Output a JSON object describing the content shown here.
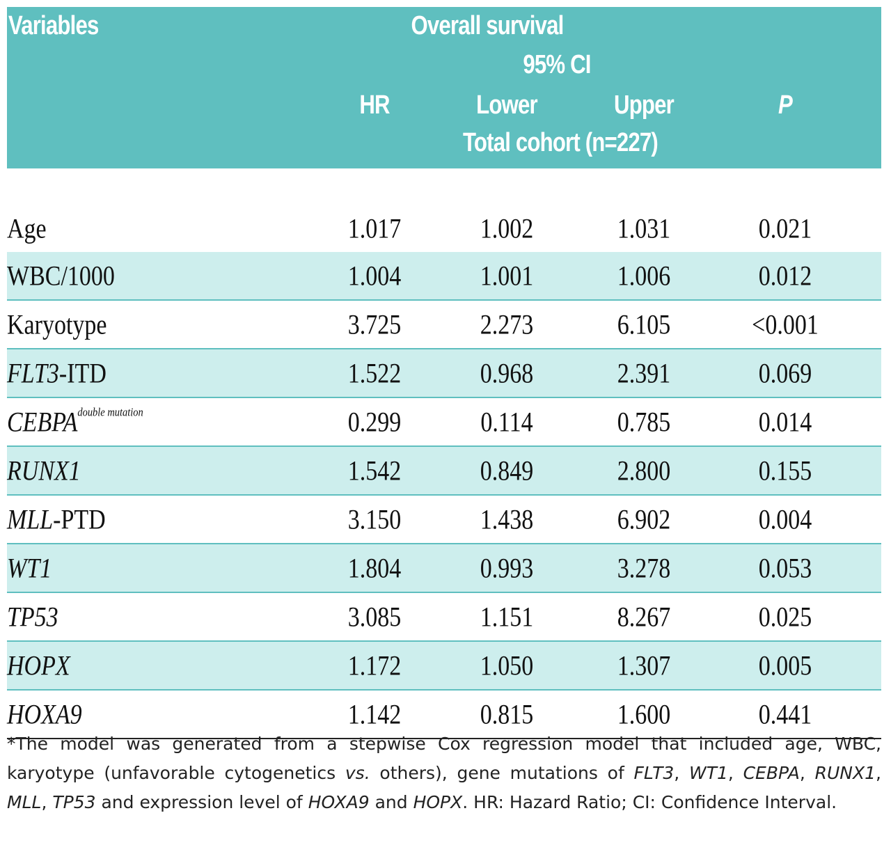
{
  "header": {
    "variables": "Variables",
    "overall_survival": "Overall survival",
    "ci": "95% CI",
    "hr": "HR",
    "lower": "Lower",
    "upper": "Upper",
    "p": "P",
    "cohort": "Total cohort (n=227)"
  },
  "rows": [
    {
      "var_main": "Age",
      "var_rest": "",
      "hr": "1.017",
      "lower": "1.002",
      "upper": "1.031",
      "p": "0.021"
    },
    {
      "var_main": "WBC/1000",
      "var_rest": "",
      "hr": "1.004",
      "lower": "1.001",
      "upper": "1.006",
      "p": "0.012"
    },
    {
      "var_main": "Karyotype",
      "var_rest": "",
      "hr": "3.725",
      "lower": "2.273",
      "upper": "6.105",
      "p": "<0.001"
    },
    {
      "var_main": "FLT3",
      "var_rest": "-ITD",
      "hr": "1.522",
      "lower": "0.968",
      "upper": "2.391",
      "p": "0.069"
    },
    {
      "var_main": "CEBPA",
      "var_sup": "double mutation",
      "hr": "0.299",
      "lower": "0.114",
      "upper": "0.785",
      "p": "0.014"
    },
    {
      "var_main": "RUNX1",
      "var_rest": "",
      "hr": "1.542",
      "lower": "0.849",
      "upper": "2.800",
      "p": "0.155"
    },
    {
      "var_main": "MLL",
      "var_rest": "-PTD",
      "hr": "3.150",
      "lower": "1.438",
      "upper": "6.902",
      "p": "0.004"
    },
    {
      "var_main": "WT1",
      "var_rest": "",
      "hr": "1.804",
      "lower": "0.993",
      "upper": "3.278",
      "p": "0.053"
    },
    {
      "var_main": "TP53",
      "var_rest": "",
      "hr": "3.085",
      "lower": "1.151",
      "upper": "8.267",
      "p": "0.025"
    },
    {
      "var_main": "HOPX",
      "var_rest": "",
      "hr": "1.172",
      "lower": "1.050",
      "upper": "1.307",
      "p": "0.005"
    },
    {
      "var_main": "HOXA9",
      "var_rest": "",
      "hr": "1.142",
      "lower": "0.815",
      "upper": "1.600",
      "p": "0.441"
    }
  ],
  "footnote": {
    "t1": "*The model was generated from a stepwise Cox regression model that included age, WBC, karyotype (unfavorable cytogenetics ",
    "vs": "vs.",
    "t2": " others), gene mutations of ",
    "flt3": "FLT3",
    "c1": ", ",
    "wt1": "WT1",
    "c2": ", ",
    "cebpa": "CEBPA",
    "c3": ", ",
    "runx1": "RUNX1",
    "c4": ", ",
    "mll": "MLL",
    "c5": ", ",
    "tp53": "TP53",
    "t3": " and expression level of ",
    "hoxa9": "HOXA9",
    "t4": " and ",
    "hopx": "HOPX",
    "t5": ". HR: Hazard Ratio; CI: Confidence Interval."
  }
}
